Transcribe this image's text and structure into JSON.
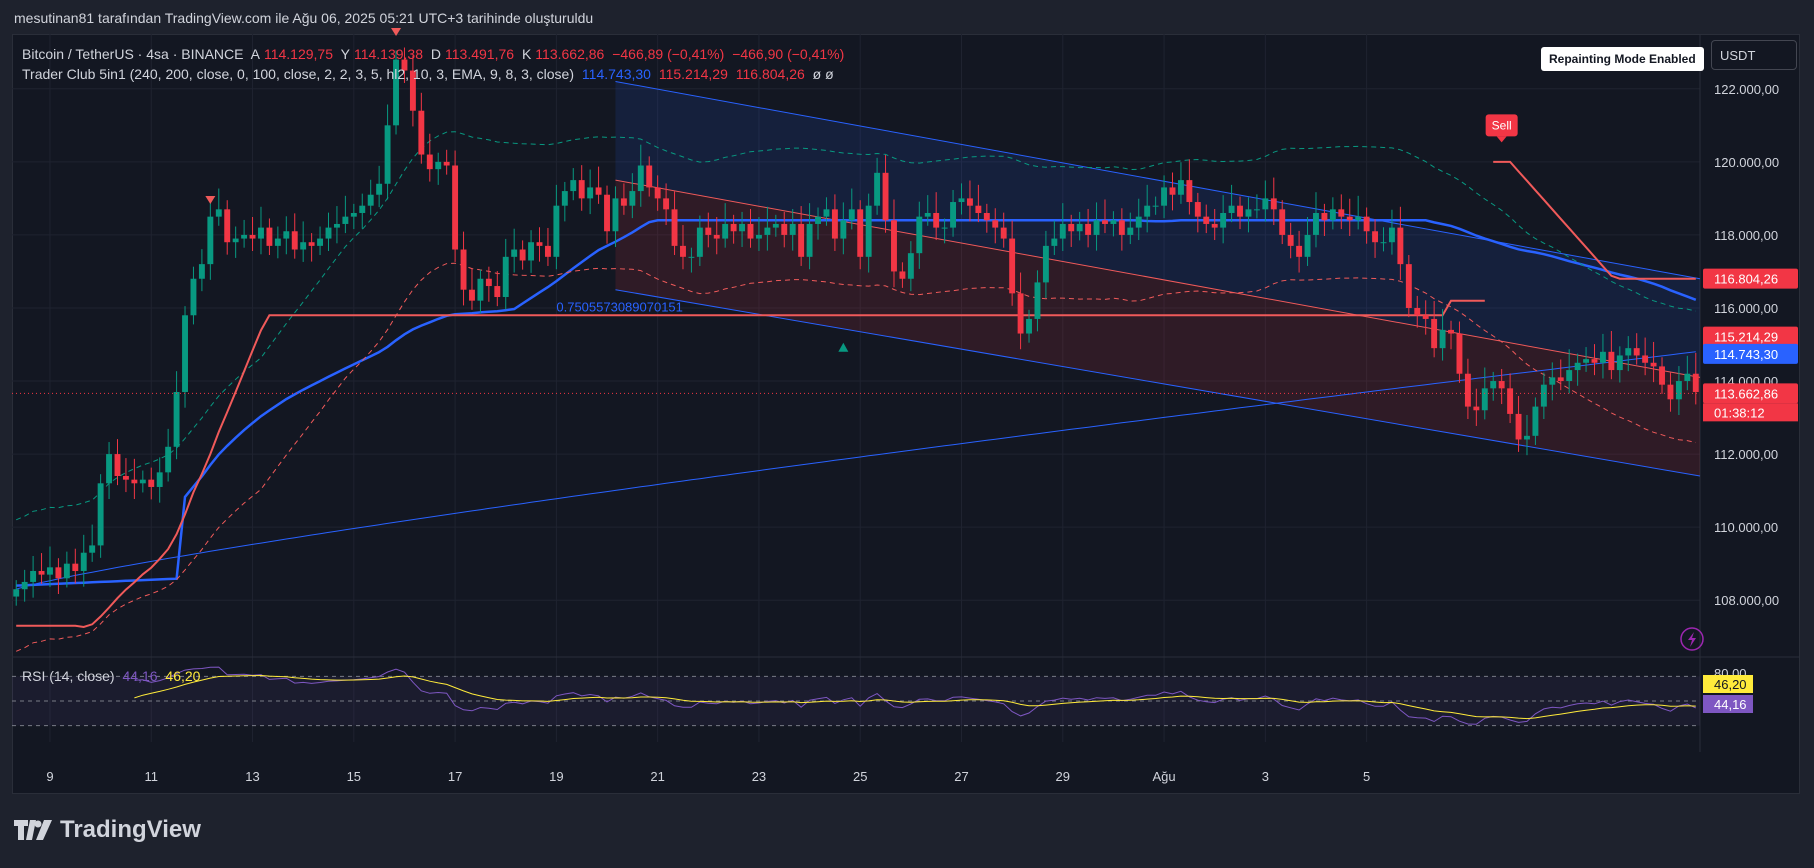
{
  "header": {
    "text": "mesutinan81 tarafından TradingView.com ile Ağu 06, 2025 05:21 UTC+3 tarihinde oluşturuldu"
  },
  "legend": {
    "symbol": "Bitcoin / TetherUS · 4sa · BINANCE",
    "open_label": "A",
    "open": "114.129,75",
    "high_label": "Y",
    "high": "114.139,38",
    "low_label": "D",
    "low": "113.491,76",
    "close_label": "K",
    "close": "113.662,86",
    "change": "−466,89 (−0,41%)",
    "change2": "−466,90 (−0,41%)",
    "indicator": "Trader Club 5in1 (240, 200, close, 0, 100, close, 2, 2, 3, 5, hl2, 10, 3, EMA, 9, 8, 3, close)",
    "ind_v1": "114.743,30",
    "ind_v2": "115.214,29",
    "ind_v3": "116.804,26",
    "ind_v4": "ø ø"
  },
  "rsi_legend": {
    "label": "RSI (14, close)",
    "v1": "44,16",
    "v2": "46,20"
  },
  "badges": {
    "repaint": "Repainting Mode Enabled",
    "currency": "USDT",
    "sell": "Sell"
  },
  "fib_label": "0.7505573089070151",
  "brand": "TradingView",
  "colors": {
    "up": "#089981",
    "down": "#f23645",
    "blue": "#2962ff",
    "red_line": "#f05a5a",
    "yellow": "#ffeb3b",
    "purple": "#7e57c2",
    "bg": "#131722"
  },
  "chart_data": {
    "type": "candlestick",
    "title": "Bitcoin / TetherUS · 4sa · BINANCE",
    "ylim": [
      106500,
      123500
    ],
    "y_ticks": [
      "122.000,00",
      "120.000,00",
      "118.000,00",
      "116.000,00",
      "114.000,00",
      "112.000,00",
      "110.000,00",
      "108.000,00"
    ],
    "y_tick_values": [
      122000,
      120000,
      118000,
      116000,
      114000,
      112000,
      110000,
      108000
    ],
    "x_ticks": [
      "9",
      "11",
      "13",
      "15",
      "17",
      "19",
      "21",
      "23",
      "25",
      "27",
      "29",
      "Ağu",
      "3",
      "5"
    ],
    "x_tick_bar_index": [
      4,
      16,
      28,
      40,
      52,
      64,
      76,
      88,
      100,
      112,
      124,
      136,
      148,
      160
    ],
    "price_labels": [
      {
        "text": "116.804,26",
        "value": 116804.26,
        "color": "#f23645"
      },
      {
        "text": "115.214,29",
        "value": 115214.29,
        "color": "#f23645"
      },
      {
        "text": "114.743,30",
        "value": 114743.3,
        "color": "#2962ff"
      },
      {
        "text": "113.662,86",
        "value": 113662.86,
        "color": "#f23645"
      }
    ],
    "countdown": "01:38:12",
    "candles_close": [
      108300,
      108500,
      108800,
      108700,
      108900,
      108600,
      109000,
      108800,
      109300,
      109500,
      111200,
      112000,
      111400,
      111300,
      111200,
      111300,
      111100,
      111500,
      112200,
      113700,
      115800,
      116800,
      117200,
      118500,
      118700,
      117800,
      117900,
      118000,
      117900,
      118200,
      117700,
      117900,
      118100,
      117600,
      117800,
      117700,
      117900,
      118200,
      118300,
      118500,
      118600,
      118800,
      119100,
      119400,
      121000,
      122800,
      122500,
      121400,
      120200,
      119800,
      120000,
      119900,
      117600,
      116500,
      116200,
      116800,
      116600,
      116300,
      117400,
      117600,
      117300,
      117800,
      117700,
      117400,
      118800,
      119200,
      119500,
      119000,
      119300,
      119100,
      118100,
      119000,
      118800,
      119200,
      119900,
      119300,
      119000,
      118700,
      117700,
      117400,
      117400,
      118200,
      118000,
      117900,
      118300,
      118100,
      118300,
      117900,
      118000,
      118200,
      118300,
      118000,
      118300,
      117400,
      118300,
      118500,
      118700,
      117900,
      118400,
      118700,
      117400,
      118800,
      119700,
      118400,
      117000,
      116800,
      117500,
      118500,
      118600,
      118200,
      118200,
      118900,
      119000,
      118800,
      118600,
      118400,
      118200,
      117900,
      116400,
      115300,
      115700,
      116700,
      117700,
      117900,
      118300,
      118100,
      118300,
      118000,
      118400,
      118300,
      118400,
      118000,
      118200,
      118500,
      118800,
      118800,
      119300,
      119100,
      119500,
      118900,
      118500,
      118300,
      118200,
      118600,
      118800,
      118500,
      118700,
      118700,
      119000,
      118700,
      118000,
      117700,
      117400,
      118000,
      118600,
      118400,
      118700,
      118500,
      118400,
      118500,
      118100,
      117800,
      117800,
      118200,
      117200,
      116000,
      115800,
      115700,
      114900,
      115400,
      115300,
      114200,
      113300,
      113200,
      113800,
      114000,
      113800,
      113100,
      112400,
      112500,
      113300,
      113900,
      114100,
      114000,
      114300,
      114500,
      114600,
      114500,
      114800,
      114300,
      114700,
      114900,
      114700,
      114500,
      114400,
      113900,
      113500,
      114000,
      114200,
      113700
    ],
    "rsi": {
      "levels": [
        80,
        50,
        20
      ],
      "labels": [
        "80,00"
      ],
      "values_shown": [
        "46,20",
        "44,16"
      ]
    }
  }
}
